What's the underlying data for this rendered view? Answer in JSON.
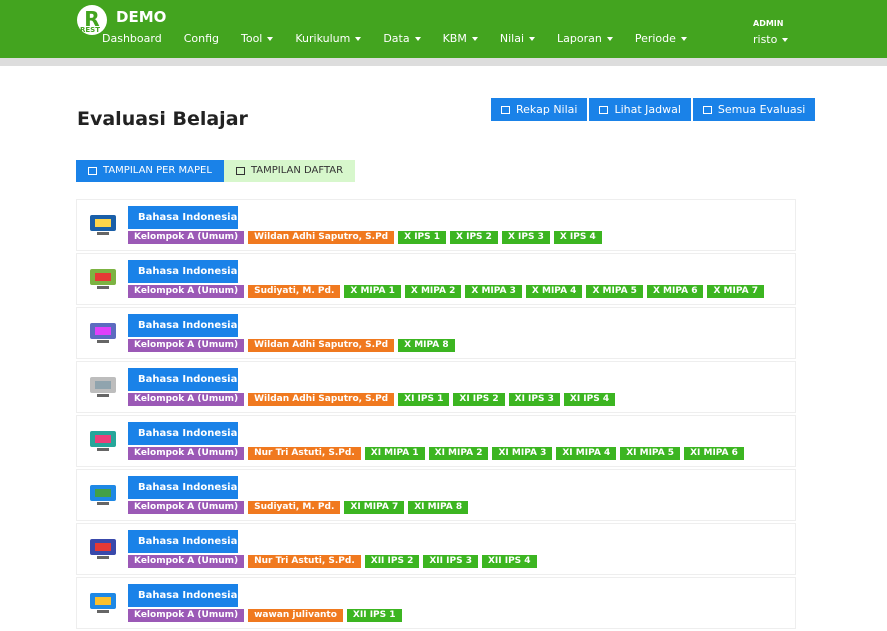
{
  "header": {
    "brand": "DEMO",
    "logo": "R",
    "logo_caption": "REST",
    "nav": [
      {
        "label": "Dashboard",
        "dropdown": false
      },
      {
        "label": "Config",
        "dropdown": false
      },
      {
        "label": "Tool",
        "dropdown": true
      },
      {
        "label": "Kurikulum",
        "dropdown": true
      },
      {
        "label": "Data",
        "dropdown": true
      },
      {
        "label": "KBM",
        "dropdown": true
      },
      {
        "label": "Nilai",
        "dropdown": true
      },
      {
        "label": "Laporan",
        "dropdown": true
      },
      {
        "label": "Periode",
        "dropdown": true
      }
    ],
    "user": {
      "role": "ADMIN",
      "name": "risto"
    }
  },
  "page": {
    "title": "Evaluasi Belajar",
    "buttons": [
      "Rekap Nilai",
      "Lihat Jadwal",
      "Semua Evaluasi"
    ],
    "tabs": [
      "TAMPILAN PER MAPEL",
      "TAMPILAN DAFTAR"
    ]
  },
  "items": [
    {
      "subject": "Bahasa Indonesia",
      "group": "Kelompok A (Umum)",
      "teacher": "Wildan Adhi Saputro, S.Pd",
      "classes": [
        "X IPS 1",
        "X IPS 2",
        "X IPS 3",
        "X IPS 4"
      ]
    },
    {
      "subject": "Bahasa Indonesia",
      "group": "Kelompok A (Umum)",
      "teacher": "Sudiyati, M. Pd.",
      "classes": [
        "X MIPA 1",
        "X MIPA 2",
        "X MIPA 3",
        "X MIPA 4",
        "X MIPA 5",
        "X MIPA 6",
        "X MIPA 7"
      ]
    },
    {
      "subject": "Bahasa Indonesia",
      "group": "Kelompok A (Umum)",
      "teacher": "Wildan Adhi Saputro, S.Pd",
      "classes": [
        "X MIPA 8"
      ]
    },
    {
      "subject": "Bahasa Indonesia",
      "group": "Kelompok A (Umum)",
      "teacher": "Wildan Adhi Saputro, S.Pd",
      "classes": [
        "XI IPS 1",
        "XI IPS 2",
        "XI IPS 3",
        "XI IPS 4"
      ]
    },
    {
      "subject": "Bahasa Indonesia",
      "group": "Kelompok A (Umum)",
      "teacher": "Nur Tri Astuti, S.Pd.",
      "classes": [
        "XI MIPA 1",
        "XI MIPA 2",
        "XI MIPA 3",
        "XI MIPA 4",
        "XI MIPA 5",
        "XI MIPA 6"
      ]
    },
    {
      "subject": "Bahasa Indonesia",
      "group": "Kelompok A (Umum)",
      "teacher": "Sudiyati, M. Pd.",
      "classes": [
        "XI MIPA 7",
        "XI MIPA 8"
      ]
    },
    {
      "subject": "Bahasa Indonesia",
      "group": "Kelompok A (Umum)",
      "teacher": "Nur Tri Astuti, S.Pd.",
      "classes": [
        "XII IPS 2",
        "XII IPS 3",
        "XII IPS 4"
      ]
    },
    {
      "subject": "Bahasa Indonesia",
      "group": "Kelompok A (Umum)",
      "teacher": "wawan julivanto",
      "classes": [
        "XII IPS 1"
      ]
    }
  ]
}
